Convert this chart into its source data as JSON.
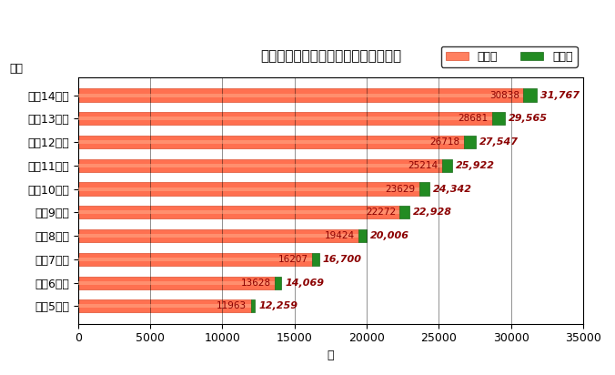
{
  "title": "通級による指導対象児童生徒数の推移",
  "xlabel": "人",
  "ylabel": "年度",
  "years": [
    "平成5年度",
    "平成6年度",
    "平成7年度",
    "平成8年度",
    "平成9年度",
    "平成10年度",
    "平成11年度",
    "平成12年度",
    "平成13年度",
    "平成14年度"
  ],
  "shogakko": [
    11963,
    13628,
    16207,
    19424,
    22272,
    23629,
    25214,
    26718,
    28681,
    30838
  ],
  "chugakko_total": [
    12259,
    14069,
    16700,
    20006,
    22928,
    24342,
    25922,
    27547,
    29565,
    31767
  ],
  "shogakko_color": "#FF8060",
  "chugakko_color": "#228B22",
  "xlim": [
    0,
    35000
  ],
  "xticks": [
    0,
    5000,
    10000,
    15000,
    20000,
    25000,
    30000,
    35000
  ],
  "legend_shogakko": "小学校",
  "legend_chugakko": "中学校",
  "bg_color": "#FFFFFF",
  "annotation_color": "#8B0000",
  "title_fontsize": 11,
  "tick_fontsize": 9,
  "label_fontsize": 9
}
